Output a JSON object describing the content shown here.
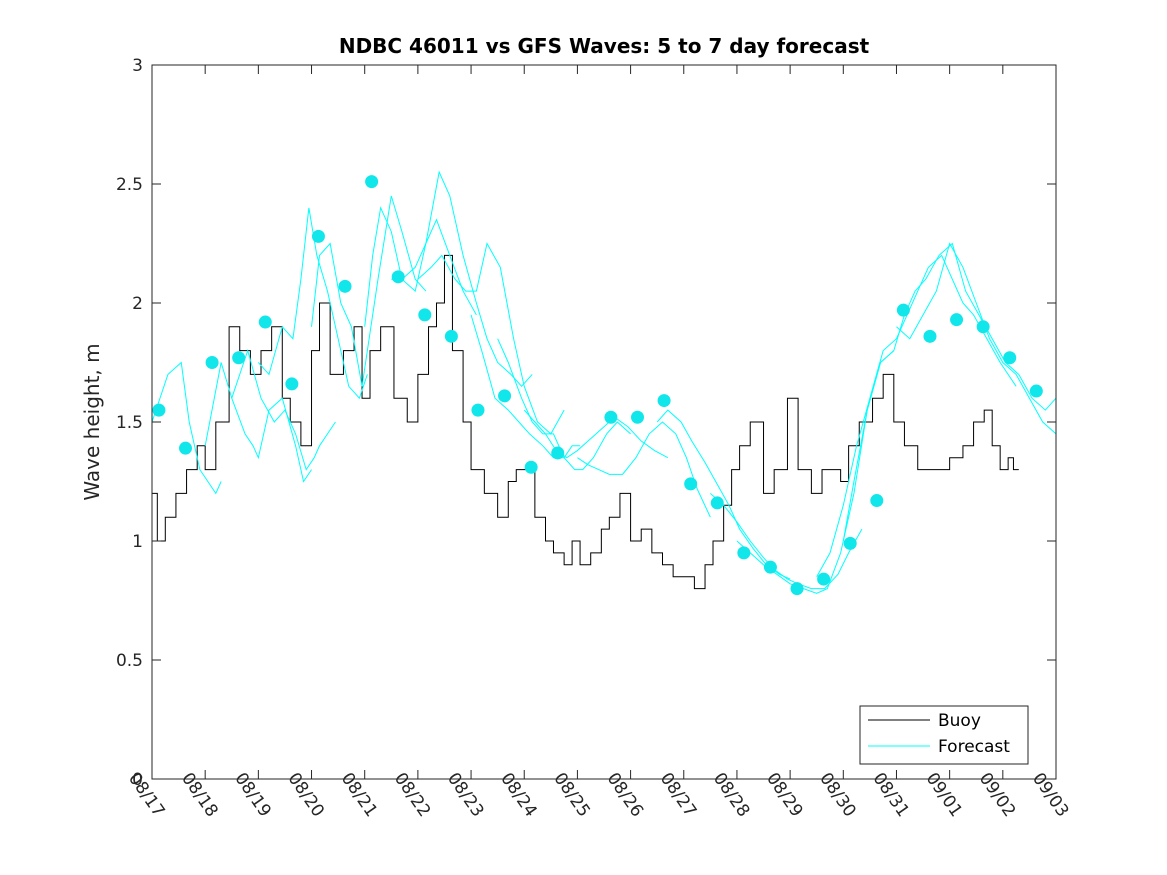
{
  "chart_data": {
    "type": "line",
    "title": "NDBC 46011 vs GFS Waves: 5 to 7 day forecast",
    "xlabel": "",
    "ylabel": "Wave height, m",
    "xlim": [
      0,
      17
    ],
    "ylim": [
      0,
      3
    ],
    "x_tick_labels": [
      "08/17",
      "08/18",
      "08/19",
      "08/20",
      "08/21",
      "08/22",
      "08/23",
      "08/24",
      "08/25",
      "08/26",
      "08/27",
      "08/28",
      "08/29",
      "08/30",
      "08/31",
      "09/01",
      "09/02",
      "09/03"
    ],
    "y_ticks": [
      0,
      0.5,
      1,
      1.5,
      2,
      2.5,
      3
    ],
    "y_tick_labels": [
      "0",
      "0.5",
      "1",
      "1.5",
      "2",
      "2.5",
      "3"
    ],
    "legend": {
      "position": "bottom-right",
      "entries": [
        "Buoy",
        "Forecast"
      ]
    },
    "colors": {
      "buoy": "#000000",
      "forecast": "#00ffff",
      "marker": "#11e6ea"
    },
    "buoy": {
      "name": "Buoy",
      "x": [
        0,
        0.1,
        0.25,
        0.45,
        0.65,
        0.85,
        1.0,
        1.2,
        1.45,
        1.65,
        1.85,
        2.05,
        2.25,
        2.45,
        2.6,
        2.8,
        3.0,
        3.15,
        3.35,
        3.6,
        3.8,
        3.95,
        4.1,
        4.3,
        4.55,
        4.8,
        5.0,
        5.2,
        5.35,
        5.5,
        5.65,
        5.85,
        6.0,
        6.25,
        6.5,
        6.7,
        6.85,
        7.0,
        7.2,
        7.4,
        7.55,
        7.75,
        7.9,
        8.05,
        8.25,
        8.45,
        8.6,
        8.8,
        9.0,
        9.2,
        9.4,
        9.6,
        9.8,
        10.0,
        10.2,
        10.4,
        10.55,
        10.75,
        10.9,
        11.05,
        11.25,
        11.5,
        11.7,
        11.95,
        12.15,
        12.4,
        12.6,
        12.75,
        12.95,
        13.1,
        13.3,
        13.55,
        13.75,
        13.95,
        14.15,
        14.4,
        14.6,
        14.8,
        15.0,
        15.25,
        15.45,
        15.65,
        15.8,
        15.95,
        16.1,
        16.2,
        16.3
      ],
      "values": [
        1.2,
        1.0,
        1.1,
        1.2,
        1.3,
        1.4,
        1.3,
        1.5,
        1.9,
        1.8,
        1.7,
        1.8,
        1.9,
        1.6,
        1.5,
        1.4,
        1.8,
        2.0,
        1.7,
        1.8,
        1.9,
        1.6,
        1.8,
        1.9,
        1.6,
        1.5,
        1.7,
        1.9,
        2.0,
        2.2,
        1.8,
        1.5,
        1.3,
        1.2,
        1.1,
        1.25,
        1.3,
        1.3,
        1.1,
        1.0,
        0.95,
        0.9,
        1.0,
        0.9,
        0.95,
        1.05,
        1.1,
        1.2,
        1.0,
        1.05,
        0.95,
        0.9,
        0.85,
        0.85,
        0.8,
        0.9,
        1.0,
        1.15,
        1.3,
        1.4,
        1.5,
        1.2,
        1.3,
        1.6,
        1.3,
        1.2,
        1.3,
        1.3,
        1.25,
        1.4,
        1.5,
        1.6,
        1.7,
        1.5,
        1.4,
        1.3,
        1.3,
        1.3,
        1.35,
        1.4,
        1.5,
        1.55,
        1.4,
        1.3,
        1.35,
        1.3,
        1.3
      ]
    },
    "forecast": {
      "name": "Forecast",
      "runs": [
        {
          "x": [
            0,
            0.3,
            0.55,
            0.7,
            0.9,
            1.05,
            1.2,
            1.3
          ],
          "values": [
            1.5,
            1.7,
            1.75,
            1.5,
            1.3,
            1.25,
            1.2,
            1.25
          ]
        },
        {
          "x": [
            1.0,
            1.3,
            1.5,
            1.75,
            1.9,
            2.0,
            2.2,
            2.45,
            2.7,
            2.85,
            3.0
          ],
          "values": [
            1.4,
            1.75,
            1.6,
            1.45,
            1.4,
            1.35,
            1.55,
            1.6,
            1.4,
            1.25,
            1.3
          ]
        },
        {
          "x": [
            1.5,
            1.8,
            2.05,
            2.3,
            2.5,
            2.7,
            2.9,
            3.05,
            3.15,
            3.3,
            3.45
          ],
          "values": [
            1.6,
            1.8,
            1.6,
            1.5,
            1.55,
            1.45,
            1.3,
            1.35,
            1.4,
            1.45,
            1.5
          ]
        },
        {
          "x": [
            2.0,
            2.2,
            2.45,
            2.65,
            2.8,
            2.95,
            3.1,
            3.3,
            3.5,
            3.7,
            3.9,
            4.05
          ],
          "values": [
            1.75,
            1.7,
            1.9,
            1.85,
            2.1,
            2.4,
            2.2,
            2.05,
            1.85,
            1.65,
            1.6,
            1.7
          ]
        },
        {
          "x": [
            3.0,
            3.15,
            3.35,
            3.55,
            3.75,
            3.95,
            4.05,
            4.25,
            4.5,
            4.7,
            4.95,
            5.15
          ],
          "values": [
            1.9,
            2.2,
            2.25,
            2.0,
            1.9,
            1.65,
            1.8,
            2.1,
            2.45,
            2.3,
            2.1,
            2.05
          ]
        },
        {
          "x": [
            4.0,
            4.15,
            4.3,
            4.5,
            4.7,
            4.95,
            5.15,
            5.35,
            5.6,
            5.85,
            6.1
          ],
          "values": [
            1.9,
            2.2,
            2.4,
            2.3,
            2.1,
            2.15,
            2.25,
            2.35,
            2.2,
            2.05,
            1.95
          ]
        },
        {
          "x": [
            4.5,
            4.7,
            4.95,
            5.15,
            5.4,
            5.6,
            5.85,
            6.1,
            6.3,
            6.5,
            6.75,
            6.95,
            7.15
          ],
          "values": [
            2.1,
            2.1,
            2.05,
            2.25,
            2.55,
            2.45,
            2.2,
            2.0,
            1.85,
            1.75,
            1.7,
            1.65,
            1.7
          ]
        },
        {
          "x": [
            5.0,
            5.25,
            5.45,
            5.7,
            5.9,
            6.1,
            6.3,
            6.55,
            6.8,
            7.0,
            7.25,
            7.5,
            7.75
          ],
          "values": [
            2.1,
            2.15,
            2.2,
            2.1,
            2.05,
            2.05,
            2.25,
            2.15,
            1.85,
            1.65,
            1.5,
            1.45,
            1.55
          ]
        },
        {
          "x": [
            6.0,
            6.2,
            6.45,
            6.7,
            6.9,
            7.1,
            7.35,
            7.55,
            7.75,
            7.9,
            8.05
          ],
          "values": [
            1.95,
            1.8,
            1.6,
            1.55,
            1.5,
            1.45,
            1.4,
            1.35,
            1.35,
            1.4,
            1.4
          ]
        },
        {
          "x": [
            6.5,
            6.7,
            6.95,
            7.15,
            7.35,
            7.55,
            7.75,
            7.95,
            8.1,
            8.3,
            8.55,
            8.75,
            9.0
          ],
          "values": [
            1.85,
            1.75,
            1.6,
            1.5,
            1.45,
            1.45,
            1.35,
            1.3,
            1.3,
            1.35,
            1.45,
            1.5,
            1.45
          ]
        },
        {
          "x": [
            7.0,
            7.2,
            7.4,
            7.6,
            7.8,
            8.0,
            8.2,
            8.45,
            8.7,
            8.95,
            9.2,
            9.45,
            9.7
          ],
          "values": [
            1.55,
            1.5,
            1.45,
            1.38,
            1.35,
            1.38,
            1.42,
            1.47,
            1.52,
            1.48,
            1.42,
            1.38,
            1.35
          ]
        },
        {
          "x": [
            8.0,
            8.2,
            8.4,
            8.6,
            8.85,
            9.1,
            9.35,
            9.6,
            9.85,
            10.05,
            10.25,
            10.5
          ],
          "values": [
            1.35,
            1.32,
            1.3,
            1.28,
            1.28,
            1.35,
            1.45,
            1.5,
            1.45,
            1.35,
            1.22,
            1.1
          ]
        },
        {
          "x": [
            9.5,
            9.7,
            9.95,
            10.15,
            10.4,
            10.6,
            10.85,
            11.05,
            11.3,
            11.55,
            11.8,
            12.0
          ],
          "values": [
            1.5,
            1.55,
            1.5,
            1.42,
            1.33,
            1.25,
            1.15,
            1.05,
            0.97,
            0.9,
            0.86,
            0.84
          ]
        },
        {
          "x": [
            10.5,
            10.75,
            11.0,
            11.25,
            11.5,
            11.7,
            11.95,
            12.15,
            12.4,
            12.65,
            12.9,
            13.1,
            13.35
          ],
          "values": [
            1.2,
            1.15,
            1.08,
            1.0,
            0.93,
            0.88,
            0.84,
            0.82,
            0.8,
            0.8,
            0.86,
            0.95,
            1.05
          ]
        },
        {
          "x": [
            11.0,
            11.25,
            11.5,
            11.75,
            12.0,
            12.25,
            12.5,
            12.7,
            12.95,
            13.2,
            13.45,
            13.7,
            13.95
          ],
          "values": [
            1.0,
            0.95,
            0.9,
            0.86,
            0.82,
            0.8,
            0.78,
            0.8,
            0.95,
            1.2,
            1.55,
            1.75,
            1.8
          ]
        },
        {
          "x": [
            12.5,
            12.75,
            13.0,
            13.25,
            13.5,
            13.75,
            14.0,
            14.2,
            14.4,
            14.6,
            14.85,
            15.05,
            15.25,
            15.45,
            15.7,
            15.95,
            16.25
          ],
          "values": [
            0.85,
            0.95,
            1.15,
            1.4,
            1.6,
            1.8,
            1.85,
            1.95,
            2.05,
            2.15,
            2.2,
            2.1,
            2.0,
            1.95,
            1.85,
            1.75,
            1.65
          ]
        },
        {
          "x": [
            13.0,
            13.2,
            13.45,
            13.7,
            13.95,
            14.15,
            14.35,
            14.55,
            14.8,
            15.05,
            15.3,
            15.55,
            15.8,
            16.05,
            16.3,
            16.55,
            16.8,
            17.0
          ],
          "values": [
            1.0,
            1.25,
            1.55,
            1.75,
            1.8,
            1.95,
            2.05,
            2.1,
            2.2,
            2.25,
            2.05,
            1.95,
            1.85,
            1.75,
            1.7,
            1.6,
            1.55,
            1.6
          ]
        },
        {
          "x": [
            14.0,
            14.25,
            14.5,
            14.75,
            15.0,
            15.25,
            15.5,
            15.75,
            16.0,
            16.25,
            16.5,
            16.75,
            17.0
          ],
          "values": [
            1.9,
            1.85,
            1.95,
            2.05,
            2.25,
            2.15,
            2.0,
            1.85,
            1.75,
            1.7,
            1.6,
            1.5,
            1.45
          ]
        }
      ],
      "markers": {
        "x": [
          0.13,
          0.63,
          1.13,
          1.63,
          2.13,
          2.63,
          3.13,
          3.63,
          4.13,
          4.63,
          5.13,
          5.63,
          6.13,
          6.63,
          7.13,
          7.63,
          8.63,
          9.13,
          9.63,
          10.13,
          10.63,
          11.13,
          11.63,
          12.13,
          12.63,
          13.13,
          13.63,
          14.13,
          14.63,
          15.13,
          15.63,
          16.13,
          16.63
        ],
        "values": [
          1.55,
          1.39,
          1.75,
          1.77,
          1.92,
          1.66,
          2.28,
          2.07,
          2.51,
          2.11,
          1.95,
          1.86,
          1.55,
          1.61,
          1.31,
          1.37,
          1.52,
          1.52,
          1.59,
          1.24,
          1.16,
          0.95,
          0.89,
          0.8,
          0.84,
          0.99,
          1.17,
          1.97,
          1.86,
          1.93,
          1.9,
          1.77,
          1.63
        ]
      }
    }
  }
}
